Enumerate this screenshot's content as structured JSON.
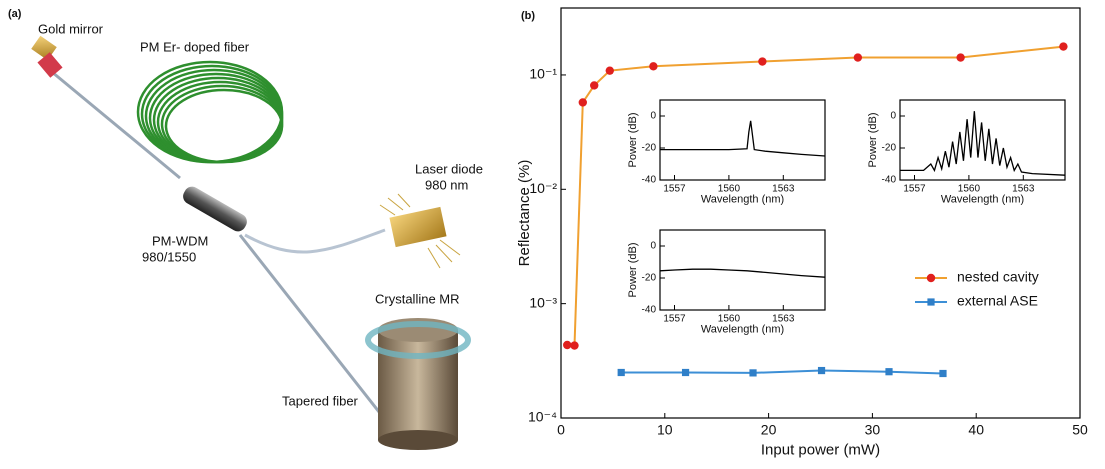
{
  "figure": {
    "panel_a": "(a)",
    "labels": [
      "Gold mirror",
      "PM Er- doped fiber",
      "Laser diode",
      "980 nm",
      "PM-WDM",
      "980/1550",
      "Crystalline MR",
      "Tapered fiber"
    ]
  },
  "chart_data": [
    {
      "type": "line",
      "panel_label": "(b)",
      "x_label": "Input power (mW)",
      "y_label": "Reflectance (%)",
      "xlim": [
        0,
        50
      ],
      "xticks": [
        0,
        10,
        20,
        30,
        40,
        50
      ],
      "ylim": [
        0.0001,
        0.385
      ],
      "log_y": true,
      "yticks": [
        {
          "value": 0.0001,
          "label": "10⁻⁴"
        },
        {
          "value": 0.001,
          "label": "10⁻³"
        },
        {
          "value": 0.01,
          "label": "10⁻²"
        },
        {
          "value": 0.1,
          "label": "10⁻¹"
        }
      ],
      "legend": "center right",
      "series": [
        {
          "name": "nested cavity",
          "color": "#f0a030",
          "marker_color": "#e0201e",
          "marker": "circle",
          "x": [
            0.6,
            1.3,
            2.1,
            3.2,
            4.7,
            8.9,
            19.4,
            28.6,
            38.5,
            48.4
          ],
          "values": [
            0.000435,
            0.00043,
            0.0575,
            0.081,
            0.109,
            0.119,
            0.131,
            0.142,
            0.142,
            0.177
          ]
        },
        {
          "name": "external ASE",
          "color": "#3c8fd6",
          "marker_color": "#2f7fc8",
          "marker": "square",
          "x": [
            5.8,
            12.0,
            18.5,
            25.1,
            31.6,
            36.8
          ],
          "values": [
            0.00025,
            0.00025,
            0.000248,
            0.00026,
            0.000254,
            0.000245
          ]
        }
      ]
    },
    {
      "type": "line",
      "x_label": "Wavelength (nm)",
      "y_label": "Power (dB)",
      "color": "#000000",
      "xlim": [
        1556.2,
        1565.3
      ],
      "xticks": [
        1557,
        1560,
        1563
      ],
      "ylim": [
        -40,
        10
      ],
      "yticks": [
        -40,
        -20,
        0
      ],
      "x": [
        1556.2,
        1557,
        1558,
        1559,
        1560,
        1561,
        1561.1,
        1561.2,
        1561.3,
        1561.4,
        1562,
        1563,
        1564,
        1565.3
      ],
      "values": [
        -21,
        -21,
        -21,
        -21,
        -21,
        -20.5,
        -10,
        -3,
        -12,
        -21,
        -22,
        -23,
        -24,
        -25
      ]
    },
    {
      "type": "line",
      "x_label": "Wavelength (nm)",
      "y_label": "Power (dB)",
      "color": "#000000",
      "xlim": [
        1556.2,
        1565.3
      ],
      "xticks": [
        1557,
        1560,
        1563
      ],
      "ylim": [
        -40,
        10
      ],
      "yticks": [
        -40,
        -20,
        0
      ],
      "x": [
        1556.2,
        1557.5,
        1557.9,
        1558.1,
        1558.3,
        1558.5,
        1558.7,
        1558.9,
        1559.1,
        1559.3,
        1559.5,
        1559.7,
        1559.9,
        1560.1,
        1560.3,
        1560.5,
        1560.7,
        1560.9,
        1561.1,
        1561.3,
        1561.5,
        1561.7,
        1561.9,
        1562.1,
        1562.3,
        1562.5,
        1562.7,
        1562.9,
        1563.5,
        1565.3
      ],
      "values": [
        -34,
        -34,
        -30,
        -34,
        -26,
        -33,
        -22,
        -32,
        -16,
        -30,
        -10,
        -28,
        -2,
        -26,
        3,
        -26,
        -4,
        -28,
        -8,
        -30,
        -14,
        -31,
        -20,
        -32,
        -26,
        -34,
        -30,
        -35,
        -36,
        -37
      ]
    },
    {
      "type": "line",
      "x_label": "Wavelength (nm)",
      "y_label": "Power (dB)",
      "color": "#000000",
      "xlim": [
        1556.2,
        1565.3
      ],
      "xticks": [
        1557,
        1560,
        1563
      ],
      "ylim": [
        -40,
        10
      ],
      "yticks": [
        -40,
        -20,
        0
      ],
      "x": [
        1556.2,
        1557,
        1558,
        1559,
        1560,
        1561,
        1562,
        1563,
        1564,
        1565.3
      ],
      "values": [
        -15.5,
        -15,
        -14.5,
        -14.5,
        -15,
        -15.5,
        -16.5,
        -17.5,
        -18.5,
        -19.5
      ]
    }
  ]
}
